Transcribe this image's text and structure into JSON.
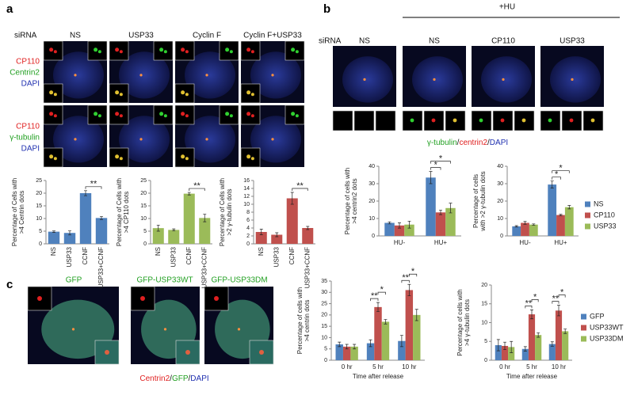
{
  "panel_a": {
    "label": "a",
    "sirna": "siRNA",
    "columns": [
      "NS",
      "USP33",
      "Cyclin F",
      "Cyclin F+USP33"
    ],
    "row_labels": [
      [
        "CP110",
        "Centrin2",
        "DAPI"
      ],
      [
        "CP110",
        "γ-tubulin",
        "DAPI"
      ]
    ]
  },
  "panel_b": {
    "label": "b",
    "sirna": "siRNA",
    "treatment": "+HU",
    "columns": [
      "NS",
      "NS",
      "CP110",
      "USP33"
    ],
    "caption": [
      "γ-tubulin",
      "/",
      "centrin2",
      "/",
      "DAPI"
    ]
  },
  "panel_c": {
    "label": "c",
    "columns": [
      "GFP",
      "GFP-USP33WT",
      "GFP-USP33DM"
    ],
    "caption": [
      "Centrin2",
      "/",
      "GFP",
      "/",
      "DAPI"
    ]
  },
  "chart_data": [
    {
      "type": "bar",
      "ylabel": [
        "Percentage of Cells with",
        ">4 Centrin dots"
      ],
      "categories": [
        "NS",
        "USP33",
        "CCNF",
        "USP33+CCNF"
      ],
      "values": [
        4.8,
        4.3,
        20,
        10.2
      ],
      "errors": [
        0.3,
        0.8,
        1,
        0.6
      ],
      "color": "#4f81bd",
      "ylim": [
        0,
        25
      ],
      "yticks": [
        0,
        5,
        10,
        15,
        20,
        25
      ],
      "significance": [
        {
          "label": "**",
          "between": [
            "CCNF",
            "USP33+CCNF"
          ]
        }
      ]
    },
    {
      "type": "bar",
      "ylabel": [
        "Percentage of Cells with",
        ">4 CP110 dots"
      ],
      "categories": [
        "NS",
        "USP33",
        "CCNF",
        "USP33+CCNF"
      ],
      "values": [
        6.2,
        5.5,
        19.8,
        10.2
      ],
      "errors": [
        1.2,
        0.4,
        0.5,
        1.5
      ],
      "color": "#9bbb59",
      "ylim": [
        0,
        25
      ],
      "yticks": [
        0,
        5,
        10,
        15,
        20,
        25
      ],
      "significance": [
        {
          "label": "**",
          "between": [
            "CCNF",
            "USP33+CCNF"
          ]
        }
      ]
    },
    {
      "type": "bar",
      "ylabel": [
        "Percentage of Cells with",
        ">2 γ-tubulin dots"
      ],
      "categories": [
        "NS",
        "USP33",
        "CCNF",
        "USP33+CCNF"
      ],
      "values": [
        3,
        2.3,
        11.5,
        4
      ],
      "errors": [
        0.7,
        0.5,
        1.5,
        0.4
      ],
      "color": "#c0504d",
      "ylim": [
        0,
        16
      ],
      "yticks": [
        0,
        2,
        4,
        6,
        8,
        10,
        12,
        14,
        16
      ],
      "significance": [
        {
          "label": "**",
          "between": [
            "CCNF",
            "USP33+CCNF"
          ]
        }
      ]
    },
    {
      "type": "bar",
      "ylabel": [
        "Percentage of cells with",
        ">4 centrin2 dots"
      ],
      "categories": [
        "HU-",
        "HU+"
      ],
      "series": [
        {
          "name": "NS",
          "color": "#4f81bd",
          "values": [
            7.5,
            33.5
          ],
          "errors": [
            0.6,
            3.5
          ]
        },
        {
          "name": "CP110",
          "color": "#c0504d",
          "values": [
            6,
            13.5
          ],
          "errors": [
            1.5,
            1.3
          ]
        },
        {
          "name": "USP33",
          "color": "#9bbb59",
          "values": [
            6.5,
            16
          ],
          "errors": [
            2,
            2.8
          ]
        }
      ],
      "ylim": [
        0,
        40
      ],
      "yticks": [
        0,
        10,
        20,
        30,
        40
      ],
      "significance": [
        {
          "label": "*",
          "category": "HU+",
          "between": [
            "NS",
            "CP110"
          ]
        },
        {
          "label": "*",
          "category": "HU+",
          "between": [
            "NS",
            "USP33"
          ]
        }
      ]
    },
    {
      "type": "bar",
      "ylabel": [
        "Percentage of cells",
        "with >2 γ-tubulin dots"
      ],
      "categories": [
        "HU-",
        "HU+"
      ],
      "series": [
        {
          "name": "NS",
          "color": "#4f81bd",
          "values": [
            5.5,
            29.5
          ],
          "errors": [
            0.4,
            2
          ]
        },
        {
          "name": "CP110",
          "color": "#c0504d",
          "values": [
            7.5,
            12
          ],
          "errors": [
            0.8,
            0.4
          ]
        },
        {
          "name": "USP33",
          "color": "#9bbb59",
          "values": [
            6.5,
            16.5
          ],
          "errors": [
            0.4,
            1
          ]
        }
      ],
      "ylim": [
        0,
        40
      ],
      "yticks": [
        0,
        10,
        20,
        30,
        40
      ],
      "legend": "right",
      "significance": [
        {
          "label": "*",
          "category": "HU+",
          "between": [
            "NS",
            "CP110"
          ]
        },
        {
          "label": "*",
          "category": "HU+",
          "between": [
            "NS",
            "USP33"
          ]
        }
      ]
    },
    {
      "type": "bar",
      "ylabel": [
        "Percentage of cells with",
        ">4 centrin dots"
      ],
      "xlabel": "Time after release",
      "categories": [
        "0 hr",
        "5 hr",
        "10 hr"
      ],
      "series": [
        {
          "name": "GFP",
          "color": "#4f81bd",
          "values": [
            7,
            7.5,
            8.5
          ],
          "errors": [
            1,
            1.5,
            2.5
          ]
        },
        {
          "name": "USP33WT",
          "color": "#c0504d",
          "values": [
            6,
            23.5,
            31
          ],
          "errors": [
            1,
            2,
            2.5
          ]
        },
        {
          "name": "USP33DM",
          "color": "#9bbb59",
          "values": [
            6,
            17,
            20
          ],
          "errors": [
            1,
            1,
            2.5
          ]
        }
      ],
      "ylim": [
        0,
        35
      ],
      "yticks": [
        0,
        5,
        10,
        15,
        20,
        25,
        30,
        35
      ],
      "significance": [
        {
          "label": "**",
          "category": "5 hr",
          "between": [
            "GFP",
            "USP33WT"
          ]
        },
        {
          "label": "*",
          "category": "5 hr",
          "between": [
            "USP33WT",
            "USP33DM"
          ]
        },
        {
          "label": "**",
          "category": "10 hr",
          "between": [
            "GFP",
            "USP33WT"
          ]
        },
        {
          "label": "*",
          "category": "10 hr",
          "between": [
            "USP33WT",
            "USP33DM"
          ]
        }
      ]
    },
    {
      "type": "bar",
      "ylabel": [
        "Percentage of cells with",
        ">4 γ-tubulin dots"
      ],
      "xlabel": "Time after release",
      "categories": [
        "0 hr",
        "5 hr",
        "10 hr"
      ],
      "series": [
        {
          "name": "GFP",
          "color": "#4f81bd",
          "values": [
            4,
            3,
            4.3
          ],
          "errors": [
            1.5,
            0.6,
            0.6
          ]
        },
        {
          "name": "USP33WT",
          "color": "#c0504d",
          "values": [
            3.8,
            12.2,
            13.2
          ],
          "errors": [
            1,
            1.2,
            1.4
          ]
        },
        {
          "name": "USP33DM",
          "color": "#9bbb59",
          "values": [
            3.5,
            6.7,
            7.7
          ],
          "errors": [
            1.5,
            0.6,
            0.6
          ]
        }
      ],
      "ylim": [
        0,
        20
      ],
      "yticks": [
        0,
        5,
        10,
        15,
        20
      ],
      "legend": "right",
      "significance": [
        {
          "label": "**",
          "category": "5 hr",
          "between": [
            "GFP",
            "USP33WT"
          ]
        },
        {
          "label": "*",
          "category": "5 hr",
          "between": [
            "USP33WT",
            "USP33DM"
          ]
        },
        {
          "label": "**",
          "category": "10 hr",
          "between": [
            "GFP",
            "USP33WT"
          ]
        },
        {
          "label": "*",
          "category": "10 hr",
          "between": [
            "USP33WT",
            "USP33DM"
          ]
        }
      ]
    }
  ]
}
